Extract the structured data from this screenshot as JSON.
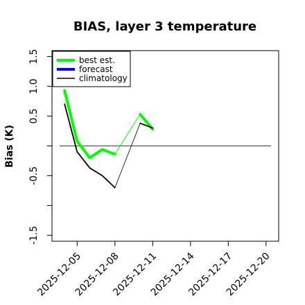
{
  "chart_data": {
    "type": "line",
    "title": "BIAS, layer 3 temperature",
    "xlabel": "",
    "ylabel": "Bias (K)",
    "xlim": [
      "2025-12-03",
      "2025-12-21"
    ],
    "ylim": [
      -1.6,
      1.6
    ],
    "yticks": [
      -1.5,
      -1.0,
      -0.5,
      0.0,
      0.5,
      1.0,
      1.5
    ],
    "ytick_labels": [
      "-1.5",
      "",
      "-0.5",
      "",
      "0.5",
      "1.0",
      "1.5"
    ],
    "xticks": [
      "2025-12-05",
      "2025-12-08",
      "2025-12-11",
      "2025-12-14",
      "2025-12-17",
      "2025-12-20"
    ],
    "xtick_labels": [
      {
        "text": "2025-12-05",
        "color": "#000000"
      },
      {
        "text": "2025-12-08",
        "color": "#000000"
      },
      {
        "text": "2025-12-11",
        "color": "#228B22"
      },
      {
        "text": "2025-12-14",
        "color": "#000000"
      },
      {
        "text": "2025-12-17",
        "color": "#000000"
      },
      {
        "text": "2025-12-20",
        "color": "#000000"
      }
    ],
    "reference_line": {
      "y": 0.0,
      "color": "#555555"
    },
    "legend": {
      "placement": "top-left",
      "entries": [
        {
          "label": "best est.",
          "color": "#00ff00",
          "width": 4
        },
        {
          "label": "forecast",
          "color": "#0000ff",
          "width": 4
        },
        {
          "label": "climatology",
          "color": "#000000",
          "width": 1.5
        }
      ]
    },
    "series": [
      {
        "name": "best est.",
        "color": "#00ff00",
        "segments": [
          {
            "width": 4,
            "points": [
              [
                "2025-12-04",
                0.93
              ],
              [
                "2025-12-05",
                0.08
              ],
              [
                "2025-12-06",
                -0.2
              ],
              [
                "2025-12-07",
                -0.06
              ],
              [
                "2025-12-08",
                -0.14
              ]
            ]
          },
          {
            "width": 1,
            "points": [
              [
                "2025-12-08",
                -0.14
              ],
              [
                "2025-12-10",
                0.53
              ]
            ]
          },
          {
            "width": 4,
            "points": [
              [
                "2025-12-10",
                0.53
              ],
              [
                "2025-12-11",
                0.28
              ]
            ]
          }
        ]
      },
      {
        "name": "climatology",
        "color": "#000000",
        "segments": [
          {
            "width": 1.8,
            "points": [
              [
                "2025-12-04",
                0.7
              ],
              [
                "2025-12-05",
                -0.1
              ],
              [
                "2025-12-06",
                -0.37
              ],
              [
                "2025-12-07",
                -0.5
              ],
              [
                "2025-12-08",
                -0.7
              ]
            ]
          },
          {
            "width": 0.8,
            "points": [
              [
                "2025-12-08",
                -0.7
              ],
              [
                "2025-12-10",
                0.38
              ]
            ]
          },
          {
            "width": 1.8,
            "points": [
              [
                "2025-12-10",
                0.38
              ],
              [
                "2025-12-11",
                0.3
              ]
            ]
          }
        ]
      }
    ]
  }
}
